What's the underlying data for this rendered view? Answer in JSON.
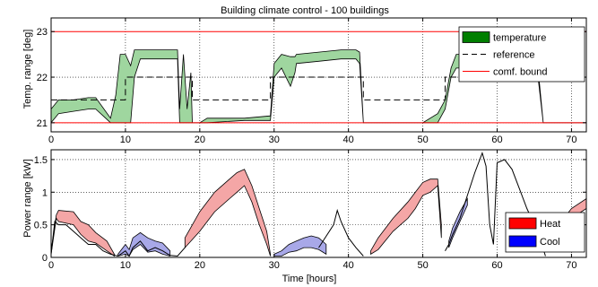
{
  "title": "Building climate control - 100 buildings",
  "chart_data": [
    {
      "type": "area",
      "ylabel": "Temp. range [deg]",
      "xlabel": "",
      "xlim": [
        0,
        72
      ],
      "ylim": [
        20.8,
        23.3
      ],
      "xticks": [
        0,
        10,
        20,
        30,
        40,
        50,
        60,
        70
      ],
      "yticks": [
        21,
        22,
        23
      ],
      "grid": true,
      "legend_position": "top-right",
      "legend": [
        {
          "label": "temperature",
          "kind": "patch",
          "color": "#007f00"
        },
        {
          "label": "reference",
          "kind": "dashed",
          "color": "#000000"
        },
        {
          "label": "comf. bound",
          "kind": "line",
          "color": "#ff0000"
        }
      ],
      "fill_color": "#9fd69f",
      "fill_edge": "#000000",
      "comfort_bounds": [
        21,
        23
      ],
      "reference": {
        "x": [
          0,
          10,
          10,
          19,
          19,
          29.5,
          29.5,
          42,
          42,
          53,
          53,
          72
        ],
        "y": [
          21.5,
          21.5,
          22,
          22,
          21.5,
          21.5,
          22,
          22,
          21.5,
          21.5,
          22,
          22
        ]
      },
      "x": [
        0,
        1,
        3,
        5,
        6,
        8,
        8.7,
        9.3,
        10,
        10.7,
        11.2,
        12,
        15,
        17,
        17.3,
        17.8,
        18.3,
        18.8,
        19,
        20,
        20.5,
        21,
        26,
        29.5,
        30,
        31,
        32.2,
        32.8,
        33,
        36,
        39,
        41,
        41.5,
        42,
        44,
        46,
        48,
        50,
        52,
        53,
        53.8,
        54.5,
        55,
        60,
        65,
        65.5,
        66.2,
        67,
        72
      ],
      "upper": [
        21.3,
        21.5,
        21.5,
        21.55,
        21.55,
        21.1,
        21.6,
        22.5,
        22.5,
        22.25,
        22.6,
        22.6,
        22.6,
        22.6,
        21.3,
        22.5,
        21.3,
        22.1,
        21.0,
        21.0,
        21.05,
        21.1,
        21.1,
        21.15,
        22.3,
        22.5,
        22.45,
        22.45,
        22.5,
        22.55,
        22.6,
        22.6,
        22.55,
        21.0,
        21.0,
        21.0,
        21.0,
        21.0,
        21.2,
        21.5,
        22.2,
        22.5,
        22.5,
        22.5,
        22.55,
        22.2,
        21.0,
        21.0,
        21.0
      ],
      "lower": [
        21.0,
        21.2,
        21.25,
        21.3,
        21.3,
        21.0,
        21.0,
        21.0,
        21.0,
        21.0,
        22.0,
        22.4,
        22.4,
        22.4,
        21.0,
        21.0,
        21.0,
        21.0,
        21.0,
        21.0,
        21.0,
        21.0,
        21.05,
        21.05,
        22.0,
        22.2,
        21.8,
        22.1,
        22.3,
        22.35,
        22.4,
        22.4,
        22.3,
        21.0,
        21.0,
        21.0,
        21.0,
        21.0,
        21.0,
        21.3,
        22.0,
        22.2,
        22.2,
        22.3,
        22.3,
        22.0,
        21.0,
        21.0,
        21.0
      ]
    },
    {
      "type": "area",
      "ylabel": "Power range [kW]",
      "xlabel": "Time [hours]",
      "xlim": [
        0,
        72
      ],
      "ylim": [
        0,
        1.65
      ],
      "xticks": [
        0,
        10,
        20,
        30,
        40,
        50,
        60,
        70
      ],
      "yticks": [
        0,
        0.5,
        1,
        1.5
      ],
      "ytick_labels": [
        "0",
        "0.5",
        "1",
        "1.5"
      ],
      "grid": true,
      "legend_position": "bottom-right",
      "legend": [
        {
          "label": "Heat",
          "kind": "patch",
          "color": "#ff0000"
        },
        {
          "label": "Cool",
          "kind": "patch",
          "color": "#0000ff"
        }
      ],
      "series": [
        {
          "name": "Heat",
          "fill_color": "#f4a6a6",
          "x": [
            0,
            0.7,
            1,
            3,
            4,
            5,
            6,
            7.5,
            8.5
          ],
          "upper": [
            0.1,
            0.65,
            0.72,
            0.7,
            0.55,
            0.5,
            0.38,
            0.25,
            0.05
          ],
          "lower": [
            0.05,
            0.6,
            0.55,
            0.5,
            0.35,
            0.25,
            0.22,
            0.1,
            0.02
          ]
        },
        {
          "name": "Cool",
          "fill_color": "#a8a8e8",
          "x": [
            9,
            10,
            10.5,
            11,
            12,
            13,
            14,
            15,
            16
          ],
          "upper": [
            0.05,
            0.2,
            0.12,
            0.3,
            0.38,
            0.3,
            0.25,
            0.22,
            0.1
          ],
          "lower": [
            0.02,
            0.05,
            0.02,
            0.12,
            0.2,
            0.08,
            0.1,
            0.05,
            0.02
          ]
        },
        {
          "name": "Heat",
          "fill_color": "#f4a6a6",
          "x": [
            18,
            20,
            22,
            24,
            25,
            26,
            27,
            28,
            29,
            29.5
          ],
          "upper": [
            0.3,
            0.7,
            1.0,
            1.2,
            1.3,
            1.35,
            1.1,
            0.75,
            0.4,
            0.05
          ],
          "lower": [
            0.15,
            0.4,
            0.7,
            0.9,
            1.0,
            1.1,
            0.85,
            0.5,
            0.2,
            0.02
          ]
        },
        {
          "name": "Cool",
          "fill_color": "#a8a8e8",
          "x": [
            30,
            31,
            32,
            33,
            34,
            35,
            36,
            37
          ],
          "upper": [
            0.05,
            0.1,
            0.2,
            0.25,
            0.3,
            0.33,
            0.3,
            0.2
          ],
          "lower": [
            0.02,
            0.02,
            0.08,
            0.1,
            0.15,
            0.15,
            0.12,
            0.05
          ]
        },
        {
          "name": "Heat",
          "fill_color": "#f4a6a6",
          "x": [
            43,
            44,
            46,
            48,
            49,
            50,
            51,
            52,
            52.5
          ],
          "upper": [
            0.1,
            0.3,
            0.6,
            0.85,
            1.0,
            1.15,
            1.2,
            1.2,
            0.5
          ],
          "lower": [
            0.05,
            0.12,
            0.4,
            0.6,
            0.75,
            0.95,
            1.0,
            1.1,
            0.3
          ]
        },
        {
          "name": "Cool",
          "fill_color": "#a8a8e8",
          "x": [
            53.5,
            54,
            55,
            56
          ],
          "upper": [
            0.25,
            0.45,
            0.7,
            0.9
          ],
          "lower": [
            0.15,
            0.3,
            0.55,
            0.8
          ]
        },
        {
          "name": "Heat",
          "fill_color": "#f4a6a6",
          "x": [
            66.5,
            67,
            69,
            70,
            72
          ],
          "upper": [
            0.2,
            0.45,
            0.6,
            0.75,
            0.9
          ],
          "lower": [
            0.1,
            0.3,
            0.45,
            0.6,
            0.75
          ]
        }
      ],
      "lines": [
        {
          "x": [
            0,
            0.5,
            1,
            2,
            3,
            4,
            5,
            6,
            7,
            8,
            9,
            10,
            10.5,
            11,
            12,
            13,
            14,
            15,
            16,
            17,
            18
          ],
          "y": [
            0.05,
            0.55,
            0.5,
            0.5,
            0.4,
            0.3,
            0.2,
            0.2,
            0.1,
            0.05,
            0.02,
            0.1,
            0.02,
            0.15,
            0.25,
            0.1,
            0.15,
            0.1,
            0.03,
            0.02,
            0.15
          ]
        },
        {
          "x": [
            36,
            38,
            38.5,
            39,
            40,
            41,
            42
          ],
          "y": [
            0.15,
            0.5,
            0.72,
            0.55,
            0.3,
            0.15,
            0.02
          ]
        },
        {
          "x": [
            53,
            53.5,
            54,
            55,
            56,
            57,
            58,
            58.5,
            59,
            59.5,
            60,
            61,
            62,
            63,
            64,
            65,
            66,
            66.5
          ],
          "y": [
            0.1,
            0.2,
            0.35,
            0.6,
            0.95,
            1.3,
            1.6,
            1.4,
            0.5,
            0.2,
            1.45,
            1.5,
            1.35,
            1.05,
            0.75,
            0.5,
            0.2,
            0.02
          ]
        }
      ]
    }
  ]
}
